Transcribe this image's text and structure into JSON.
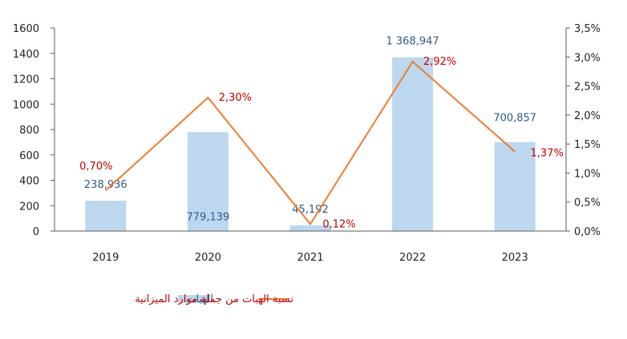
{
  "chart_data": {
    "type": "bar",
    "categories": [
      "2019",
      "2020",
      "2021",
      "2022",
      "2023"
    ],
    "series": [
      {
        "name": "الهبات",
        "type": "bar",
        "axis": "left",
        "values": [
          238.936,
          779.139,
          45.192,
          1368.947,
          700.857
        ],
        "labels": [
          "238,936",
          "779,139",
          "45,192",
          "1 368,947",
          "700,857"
        ],
        "color": "#bdd7ee"
      },
      {
        "name": "نسبة الهبات من جملة موارد الميزانية",
        "type": "line",
        "axis": "right",
        "values": [
          0.7,
          2.3,
          0.12,
          2.92,
          1.37
        ],
        "labels": [
          "0,70%",
          "2,30%",
          "0,12%",
          "2,92%",
          "1,37%"
        ],
        "color": "#ed7d31"
      }
    ],
    "ylim": [
      0,
      1600
    ],
    "yticks": [
      "0",
      "200",
      "400",
      "600",
      "800",
      "1000",
      "1200",
      "1400",
      "1600"
    ],
    "y2lim": [
      0,
      3.5
    ],
    "y2ticks": [
      "0,0%",
      "0,5%",
      "1,0%",
      "1,5%",
      "2,0%",
      "2,5%",
      "3,0%",
      "3,5%"
    ],
    "legend_position": "bottom",
    "grid": false,
    "label_color_bar": "#2f5b85",
    "label_color_line": "#c00000"
  }
}
